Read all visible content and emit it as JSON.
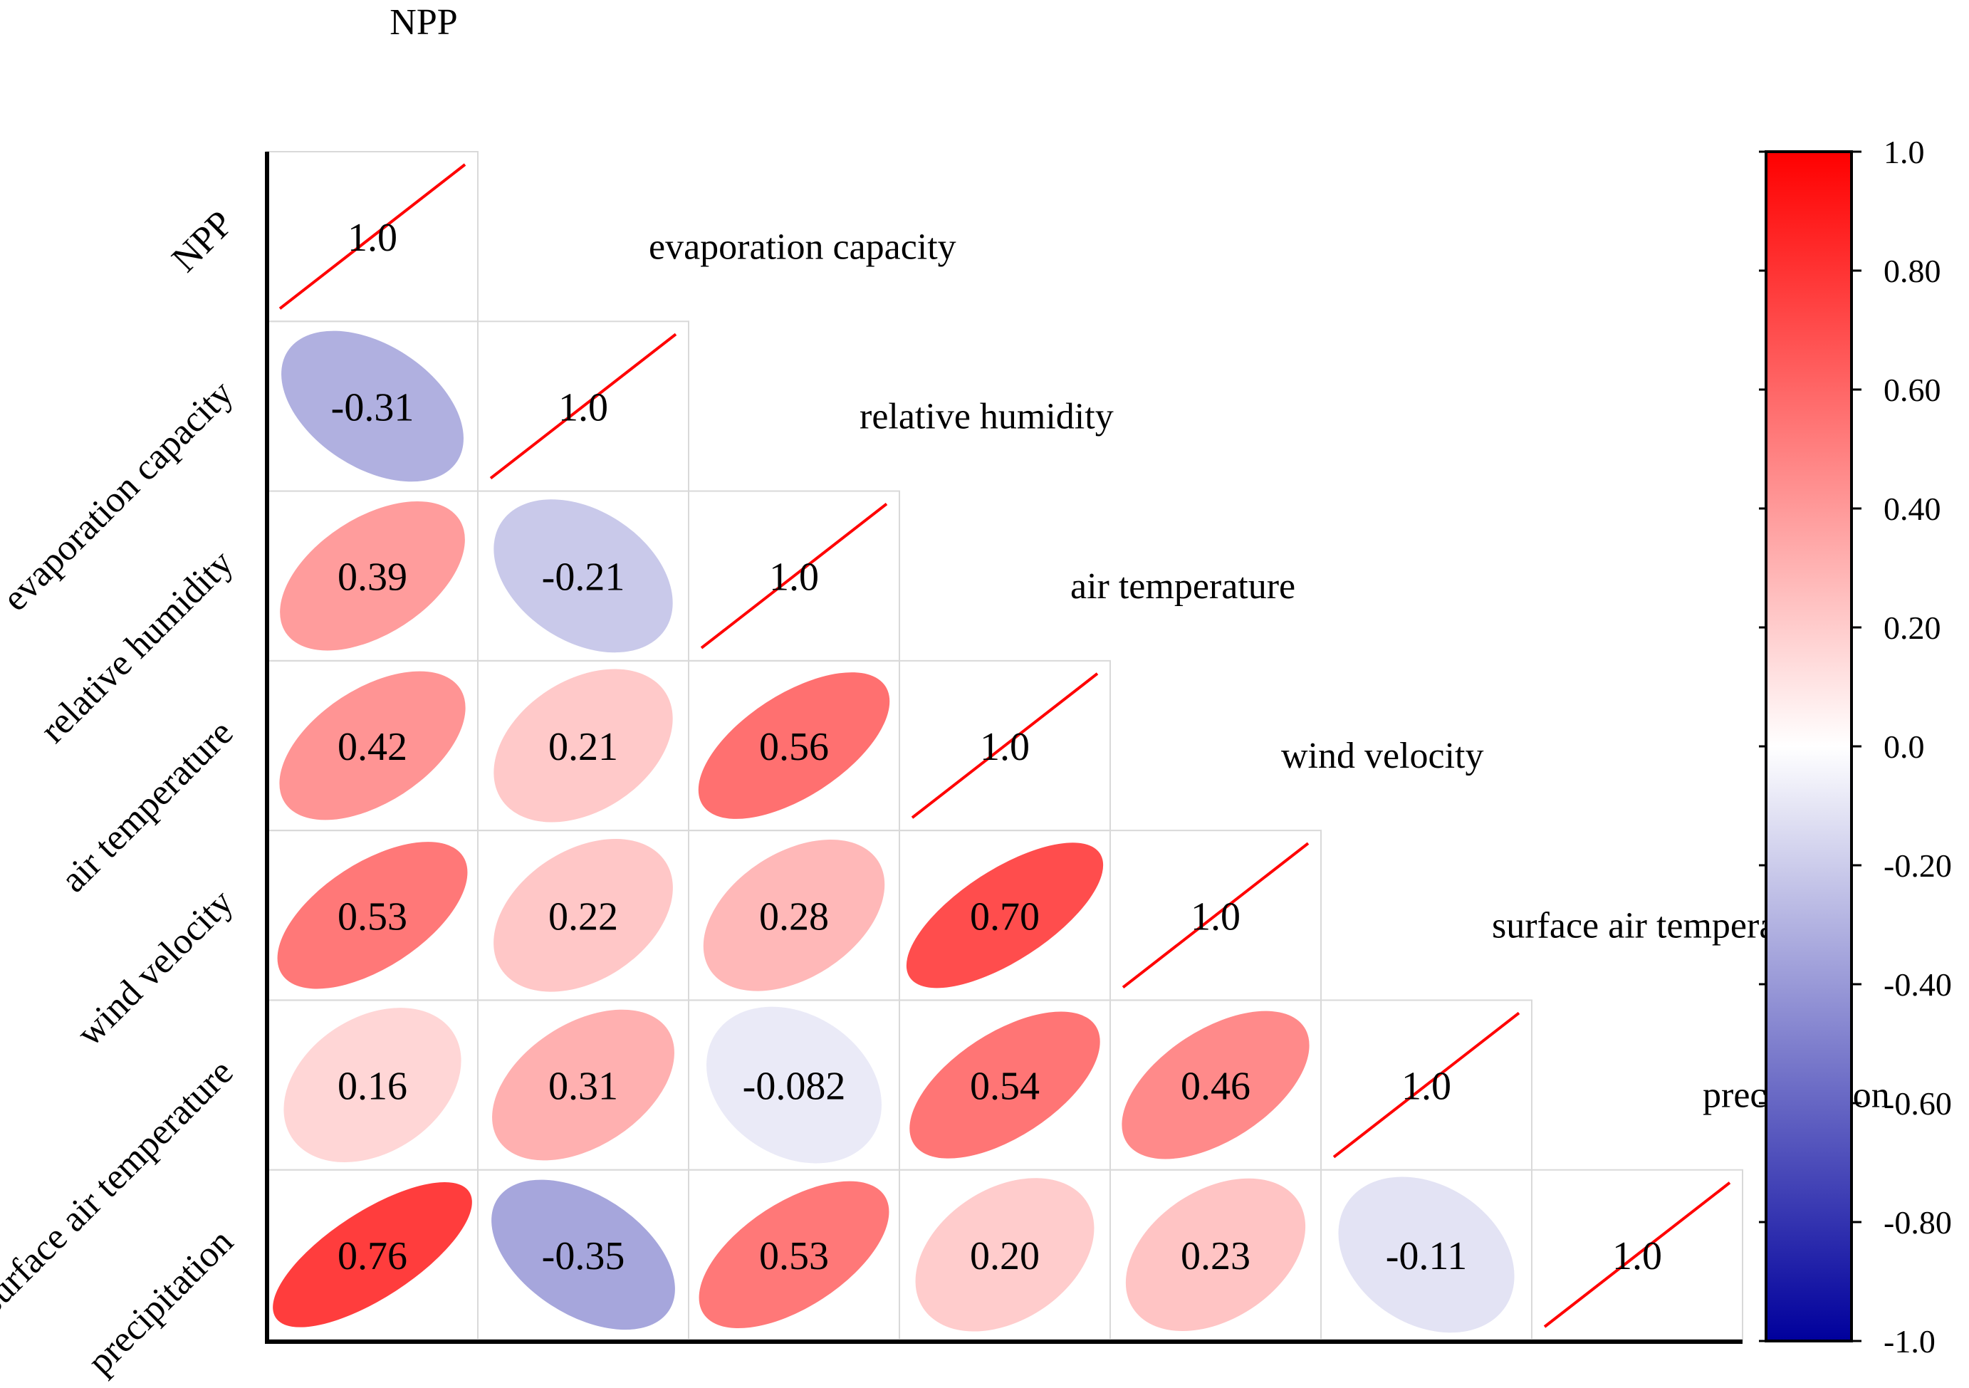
{
  "chart_data": {
    "type": "heatmap",
    "title": "",
    "variables": [
      "NPP",
      "evaporation capacity",
      "relative humidity",
      "air temperature",
      "wind velocity",
      "surface air temperature",
      "precipitation"
    ],
    "matrix": [
      [
        1.0,
        null,
        null,
        null,
        null,
        null,
        null
      ],
      [
        -0.31,
        1.0,
        null,
        null,
        null,
        null,
        null
      ],
      [
        0.39,
        -0.21,
        1.0,
        null,
        null,
        null,
        null
      ],
      [
        0.42,
        0.21,
        0.56,
        1.0,
        null,
        null,
        null
      ],
      [
        0.53,
        0.22,
        0.28,
        0.7,
        1.0,
        null,
        null
      ],
      [
        0.16,
        0.31,
        -0.082,
        0.54,
        0.46,
        1.0,
        null
      ],
      [
        0.76,
        -0.35,
        0.53,
        0.2,
        0.23,
        -0.11,
        1.0
      ]
    ],
    "matrix_labels": [
      [
        "1.0",
        "",
        "",
        "",
        "",
        "",
        ""
      ],
      [
        "-0.31",
        "1.0",
        "",
        "",
        "",
        "",
        ""
      ],
      [
        "0.39",
        "-0.21",
        "1.0",
        "",
        "",
        "",
        ""
      ],
      [
        "0.42",
        "0.21",
        "0.56",
        "1.0",
        "",
        "",
        ""
      ],
      [
        "0.53",
        "0.22",
        "0.28",
        "0.70",
        "1.0",
        "",
        ""
      ],
      [
        "0.16",
        "0.31",
        "-0.082",
        "0.54",
        "0.46",
        "1.0",
        ""
      ],
      [
        "0.76",
        "-0.35",
        "0.53",
        "0.20",
        "0.23",
        "-0.11",
        "1.0"
      ]
    ],
    "colorbar": {
      "range": [
        -1.0,
        1.0
      ],
      "ticks": [
        1.0,
        0.8,
        0.6,
        0.4,
        0.2,
        0.0,
        -0.2,
        -0.4,
        -0.6,
        -0.8,
        -1.0
      ],
      "tick_labels": [
        "1.0",
        "0.80",
        "0.60",
        "0.40",
        "0.20",
        "0.0",
        "-0.20",
        "-0.40",
        "-0.60",
        "-0.80",
        "-1.0"
      ],
      "colors": {
        "negative": "#00009c",
        "zero": "#ffffff",
        "positive": "#ff0000"
      }
    },
    "diagonal_line_color": "#ff0000",
    "grid_color": "#d9d9d9",
    "glyph": "ellipse"
  }
}
